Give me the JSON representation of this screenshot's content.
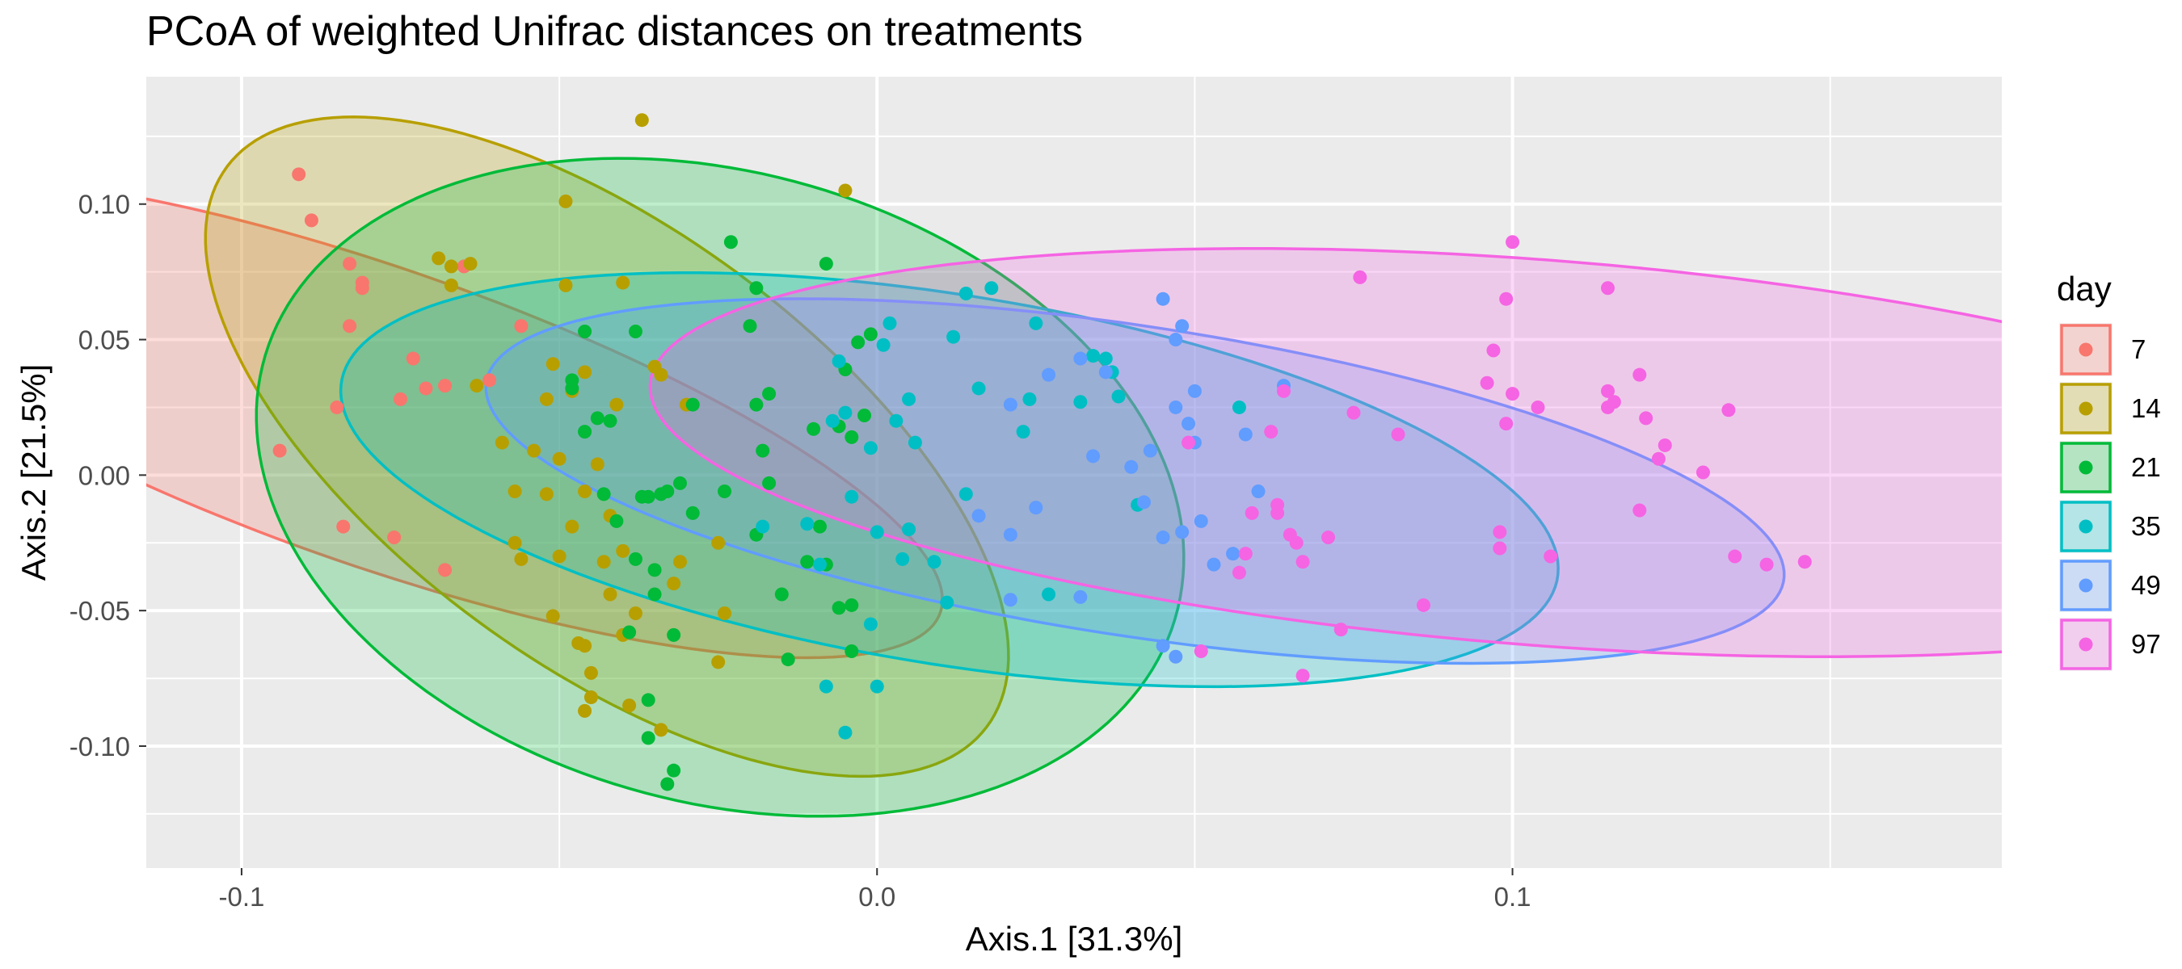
{
  "chart_data": {
    "type": "scatter",
    "title": "PCoA of weighted Unifrac distances on treatments",
    "xlabel": "Axis.1   [31.3%]",
    "ylabel": "Axis.2   [21.5%]",
    "xlim": [
      -0.115,
      0.177
    ],
    "ylim": [
      -0.145,
      0.147
    ],
    "x_ticks": [
      -0.1,
      0.0,
      0.1
    ],
    "x_tick_labels": [
      "-0.1",
      "0.0",
      "0.1"
    ],
    "y_ticks": [
      -0.1,
      -0.05,
      0.0,
      0.05,
      0.1
    ],
    "y_tick_labels": [
      "-0.10",
      "-0.05",
      "0.00",
      "0.05",
      "0.10"
    ],
    "grid": true,
    "legend": {
      "title": "day",
      "position": "right"
    },
    "series": [
      {
        "name": "7",
        "color": "#F8766D",
        "ellipse": {
          "cx": -0.0786,
          "cy": 0.0215,
          "a": 0.1179,
          "b": 0.0436,
          "angle_deg": -45
        },
        "points": [
          [
            -0.091,
            0.111
          ],
          [
            -0.089,
            0.094
          ],
          [
            -0.083,
            0.078
          ],
          [
            -0.081,
            0.071
          ],
          [
            -0.081,
            0.069
          ],
          [
            -0.083,
            0.055
          ],
          [
            -0.094,
            0.009
          ],
          [
            -0.085,
            0.025
          ],
          [
            -0.075,
            0.028
          ],
          [
            -0.073,
            0.043
          ],
          [
            -0.071,
            0.032
          ],
          [
            -0.068,
            0.033
          ],
          [
            -0.065,
            0.077
          ],
          [
            -0.061,
            0.035
          ],
          [
            -0.056,
            0.055
          ],
          [
            -0.084,
            -0.019
          ],
          [
            -0.076,
            -0.023
          ],
          [
            -0.068,
            -0.035
          ]
        ]
      },
      {
        "name": "14",
        "color": "#B79F00",
        "ellipse": {
          "cx": -0.0425,
          "cy": 0.0105,
          "a": 0.1291,
          "b": 0.0461,
          "angle_deg": -69
        },
        "points": [
          [
            -0.037,
            0.131
          ],
          [
            -0.005,
            0.105
          ],
          [
            -0.049,
            0.101
          ],
          [
            -0.069,
            0.08
          ],
          [
            -0.067,
            0.077
          ],
          [
            -0.067,
            0.07
          ],
          [
            -0.064,
            0.078
          ],
          [
            -0.063,
            0.033
          ],
          [
            -0.049,
            0.07
          ],
          [
            -0.04,
            0.071
          ],
          [
            -0.051,
            0.041
          ],
          [
            -0.046,
            0.038
          ],
          [
            -0.035,
            0.04
          ],
          [
            -0.034,
            0.037
          ],
          [
            -0.052,
            0.028
          ],
          [
            -0.048,
            0.031
          ],
          [
            -0.041,
            0.026
          ],
          [
            -0.03,
            0.026
          ],
          [
            -0.059,
            0.012
          ],
          [
            -0.054,
            0.009
          ],
          [
            -0.05,
            0.006
          ],
          [
            -0.044,
            0.004
          ],
          [
            -0.057,
            -0.006
          ],
          [
            -0.052,
            -0.007
          ],
          [
            -0.046,
            -0.006
          ],
          [
            -0.048,
            -0.019
          ],
          [
            -0.042,
            -0.015
          ],
          [
            -0.057,
            -0.025
          ],
          [
            -0.05,
            -0.03
          ],
          [
            -0.043,
            -0.032
          ],
          [
            -0.04,
            -0.028
          ],
          [
            -0.031,
            -0.032
          ],
          [
            -0.025,
            -0.025
          ],
          [
            -0.032,
            -0.04
          ],
          [
            -0.042,
            -0.044
          ],
          [
            -0.051,
            -0.052
          ],
          [
            -0.047,
            -0.062
          ],
          [
            -0.04,
            -0.059
          ],
          [
            -0.045,
            -0.073
          ],
          [
            -0.045,
            -0.082
          ],
          [
            -0.046,
            -0.087
          ],
          [
            -0.039,
            -0.085
          ],
          [
            -0.034,
            -0.094
          ],
          [
            -0.025,
            -0.069
          ],
          [
            -0.024,
            -0.051
          ],
          [
            -0.056,
            -0.031
          ],
          [
            -0.046,
            -0.063
          ],
          [
            -0.038,
            -0.051
          ]
        ]
      },
      {
        "name": "21",
        "color": "#00BA38",
        "ellipse": {
          "cx": -0.0247,
          "cy": -0.0045,
          "a": 0.1229,
          "b": 0.0704,
          "angle_deg": -79
        },
        "points": [
          [
            -0.008,
            0.078
          ],
          [
            -0.023,
            0.086
          ],
          [
            -0.019,
            0.069
          ],
          [
            -0.02,
            0.055
          ],
          [
            -0.038,
            0.053
          ],
          [
            -0.046,
            0.053
          ],
          [
            -0.048,
            0.032
          ],
          [
            -0.048,
            0.035
          ],
          [
            -0.044,
            0.021
          ],
          [
            -0.046,
            0.016
          ],
          [
            -0.042,
            0.02
          ],
          [
            -0.029,
            0.026
          ],
          [
            -0.017,
            0.03
          ],
          [
            -0.019,
            0.026
          ],
          [
            -0.018,
            0.009
          ],
          [
            -0.017,
            -0.003
          ],
          [
            -0.01,
            0.017
          ],
          [
            -0.003,
            0.049
          ],
          [
            -0.001,
            0.052
          ],
          [
            -0.006,
            0.018
          ],
          [
            -0.004,
            0.014
          ],
          [
            -0.005,
            0.039
          ],
          [
            -0.002,
            0.022
          ],
          [
            -0.031,
            -0.003
          ],
          [
            -0.036,
            -0.008
          ],
          [
            -0.034,
            -0.007
          ],
          [
            -0.033,
            -0.006
          ],
          [
            -0.037,
            -0.008
          ],
          [
            -0.041,
            -0.017
          ],
          [
            -0.038,
            -0.031
          ],
          [
            -0.035,
            -0.035
          ],
          [
            -0.035,
            -0.044
          ],
          [
            -0.032,
            -0.059
          ],
          [
            -0.039,
            -0.058
          ],
          [
            -0.036,
            -0.083
          ],
          [
            -0.036,
            -0.097
          ],
          [
            -0.033,
            -0.114
          ],
          [
            -0.032,
            -0.109
          ],
          [
            -0.015,
            -0.044
          ],
          [
            -0.014,
            -0.068
          ],
          [
            -0.004,
            -0.048
          ],
          [
            -0.006,
            -0.049
          ],
          [
            -0.008,
            -0.033
          ],
          [
            -0.011,
            -0.032
          ],
          [
            -0.009,
            -0.019
          ],
          [
            -0.019,
            -0.022
          ],
          [
            -0.024,
            -0.006
          ],
          [
            -0.004,
            -0.065
          ],
          [
            -0.043,
            -0.007
          ],
          [
            -0.029,
            -0.014
          ]
        ]
      },
      {
        "name": "35",
        "color": "#00BFC4",
        "ellipse": {
          "cx": 0.0114,
          "cy": -0.0017,
          "a": 0.1052,
          "b": 0.0628,
          "angle_deg": -31
        },
        "points": [
          [
            0.018,
            0.069
          ],
          [
            0.014,
            0.067
          ],
          [
            0.025,
            0.056
          ],
          [
            0.012,
            0.051
          ],
          [
            0.034,
            0.044
          ],
          [
            0.036,
            0.043
          ],
          [
            0.037,
            0.038
          ],
          [
            0.002,
            0.056
          ],
          [
            0.001,
            0.048
          ],
          [
            0.005,
            0.028
          ],
          [
            0.003,
            0.02
          ],
          [
            0.016,
            0.032
          ],
          [
            0.024,
            0.028
          ],
          [
            0.023,
            0.016
          ],
          [
            0.032,
            0.027
          ],
          [
            0.038,
            0.029
          ],
          [
            0.057,
            0.025
          ],
          [
            -0.006,
            0.042
          ],
          [
            -0.007,
            0.02
          ],
          [
            -0.005,
            0.023
          ],
          [
            -0.001,
            0.01
          ],
          [
            0.006,
            0.012
          ],
          [
            -0.004,
            -0.008
          ],
          [
            0.0,
            -0.021
          ],
          [
            0.005,
            -0.02
          ],
          [
            0.004,
            -0.031
          ],
          [
            0.009,
            -0.032
          ],
          [
            0.011,
            -0.047
          ],
          [
            0.027,
            -0.044
          ],
          [
            0.041,
            -0.011
          ],
          [
            -0.009,
            -0.033
          ],
          [
            -0.005,
            -0.095
          ],
          [
            -0.008,
            -0.078
          ],
          [
            0.0,
            -0.078
          ],
          [
            -0.018,
            -0.019
          ],
          [
            0.014,
            -0.007
          ],
          [
            -0.011,
            -0.018
          ],
          [
            -0.001,
            -0.055
          ]
        ]
      },
      {
        "name": "49",
        "color": "#619CFF",
        "ellipse": {
          "cx": 0.0406,
          "cy": -0.0022,
          "a": 0.1099,
          "b": 0.0537,
          "angle_deg": -25
        },
        "points": [
          [
            0.045,
            0.065
          ],
          [
            0.048,
            0.055
          ],
          [
            0.047,
            0.05
          ],
          [
            0.05,
            0.031
          ],
          [
            0.047,
            0.025
          ],
          [
            0.049,
            0.019
          ],
          [
            0.043,
            0.009
          ],
          [
            0.04,
            0.003
          ],
          [
            0.034,
            0.007
          ],
          [
            0.05,
            0.012
          ],
          [
            0.058,
            0.015
          ],
          [
            0.06,
            -0.006
          ],
          [
            0.064,
            0.033
          ],
          [
            0.056,
            -0.029
          ],
          [
            0.053,
            -0.033
          ],
          [
            0.048,
            -0.021
          ],
          [
            0.045,
            -0.023
          ],
          [
            0.051,
            -0.017
          ],
          [
            0.042,
            -0.01
          ],
          [
            0.032,
            -0.045
          ],
          [
            0.021,
            -0.046
          ],
          [
            0.025,
            -0.012
          ],
          [
            0.021,
            -0.022
          ],
          [
            0.016,
            -0.015
          ],
          [
            0.047,
            -0.067
          ],
          [
            0.045,
            -0.063
          ],
          [
            0.021,
            0.026
          ],
          [
            0.027,
            0.037
          ],
          [
            0.032,
            0.043
          ],
          [
            0.036,
            0.038
          ]
        ]
      },
      {
        "name": "97",
        "color": "#F564E3",
        "ellipse": {
          "cx": 0.1043,
          "cy": 0.0083,
          "a": 0.1428,
          "b": 0.0699,
          "angle_deg": -13
        },
        "points": [
          [
            0.1,
            0.086
          ],
          [
            0.115,
            0.069
          ],
          [
            0.099,
            0.065
          ],
          [
            0.097,
            0.046
          ],
          [
            0.096,
            0.034
          ],
          [
            0.1,
            0.03
          ],
          [
            0.104,
            0.025
          ],
          [
            0.099,
            0.019
          ],
          [
            0.115,
            0.031
          ],
          [
            0.115,
            0.025
          ],
          [
            0.116,
            0.027
          ],
          [
            0.12,
            0.037
          ],
          [
            0.121,
            0.021
          ],
          [
            0.124,
            0.011
          ],
          [
            0.123,
            0.006
          ],
          [
            0.13,
            0.001
          ],
          [
            0.134,
            0.024
          ],
          [
            0.12,
            -0.013
          ],
          [
            0.135,
            -0.03
          ],
          [
            0.14,
            -0.033
          ],
          [
            0.146,
            -0.032
          ],
          [
            0.106,
            -0.03
          ],
          [
            0.098,
            -0.021
          ],
          [
            0.098,
            -0.027
          ],
          [
            0.086,
            -0.048
          ],
          [
            0.082,
            0.015
          ],
          [
            0.076,
            0.073
          ],
          [
            0.075,
            0.023
          ],
          [
            0.073,
            -0.057
          ],
          [
            0.067,
            -0.074
          ],
          [
            0.071,
            -0.023
          ],
          [
            0.066,
            -0.025
          ],
          [
            0.065,
            -0.022
          ],
          [
            0.063,
            -0.011
          ],
          [
            0.063,
            -0.014
          ],
          [
            0.059,
            -0.014
          ],
          [
            0.062,
            0.016
          ],
          [
            0.067,
            -0.032
          ],
          [
            0.058,
            -0.029
          ],
          [
            0.057,
            -0.036
          ],
          [
            0.051,
            -0.065
          ],
          [
            0.064,
            0.031
          ],
          [
            0.049,
            0.012
          ]
        ]
      }
    ]
  }
}
